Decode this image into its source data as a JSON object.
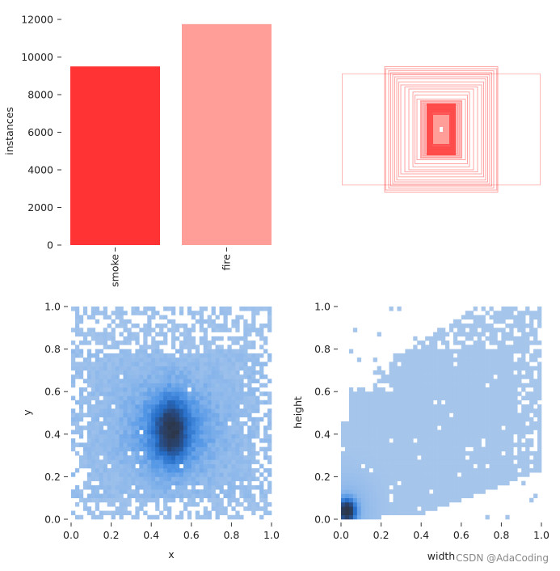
{
  "chart_data": [
    {
      "type": "bar",
      "title": "",
      "categories": [
        "smoke",
        "fire"
      ],
      "values": [
        9500,
        11750
      ],
      "colors": [
        "#ff3333",
        "#ff9e99"
      ],
      "xlabel": "",
      "ylabel": "instances",
      "ylim": [
        0,
        12000
      ],
      "yticks": [
        0,
        2000,
        4000,
        6000,
        8000,
        10000,
        12000
      ],
      "ytick_labels": [
        "0",
        "2000",
        "4000",
        "6000",
        "8000",
        "10000",
        "12000"
      ]
    },
    {
      "type": "boxes-overlay",
      "title": "",
      "description": "",
      "color": "#ff3333",
      "boxes": [
        {
          "w": 0.98,
          "h": 0.55
        },
        {
          "w": 0.56,
          "h": 0.62
        },
        {
          "w": 0.55,
          "h": 0.6
        },
        {
          "w": 0.52,
          "h": 0.58
        },
        {
          "w": 0.5,
          "h": 0.56
        },
        {
          "w": 0.48,
          "h": 0.54
        },
        {
          "w": 0.46,
          "h": 0.52
        },
        {
          "w": 0.44,
          "h": 0.5
        },
        {
          "w": 0.42,
          "h": 0.47
        },
        {
          "w": 0.4,
          "h": 0.44
        },
        {
          "w": 0.36,
          "h": 0.42
        },
        {
          "w": 0.32,
          "h": 0.4
        },
        {
          "w": 0.28,
          "h": 0.37
        },
        {
          "w": 0.26,
          "h": 0.34
        },
        {
          "w": 0.24,
          "h": 0.3
        },
        {
          "w": 0.2,
          "h": 0.28
        },
        {
          "w": 0.18,
          "h": 0.26
        },
        {
          "w": 0.16,
          "h": 0.24
        },
        {
          "w": 0.14,
          "h": 0.22
        },
        {
          "w": 0.12,
          "h": 0.2
        },
        {
          "w": 0.1,
          "h": 0.18
        },
        {
          "w": 0.08,
          "h": 0.14
        }
      ]
    },
    {
      "type": "heatmap",
      "title": "",
      "xlabel": "x",
      "ylabel": "y",
      "xlim": [
        0,
        1
      ],
      "ylim": [
        0,
        1
      ],
      "xticks": [
        "0.0",
        "0.2",
        "0.4",
        "0.6",
        "0.8",
        "1.0"
      ],
      "yticks": [
        "0.0",
        "0.2",
        "0.4",
        "0.6",
        "0.8",
        "1.0"
      ],
      "peak": {
        "x": 0.5,
        "y": 0.42
      },
      "bins": 50
    },
    {
      "type": "heatmap",
      "title": "",
      "xlabel": "width",
      "ylabel": "height",
      "xlim": [
        0,
        1
      ],
      "ylim": [
        0,
        1
      ],
      "xticks": [
        "0.0",
        "0.2",
        "0.4",
        "0.6",
        "0.8",
        "1.0"
      ],
      "yticks": [
        "0.0",
        "0.2",
        "0.4",
        "0.6",
        "0.8",
        "1.0"
      ],
      "peak": {
        "x": 0.03,
        "y": 0.04
      },
      "bins": 50
    }
  ],
  "watermark": "CSDN @AdaCoding"
}
